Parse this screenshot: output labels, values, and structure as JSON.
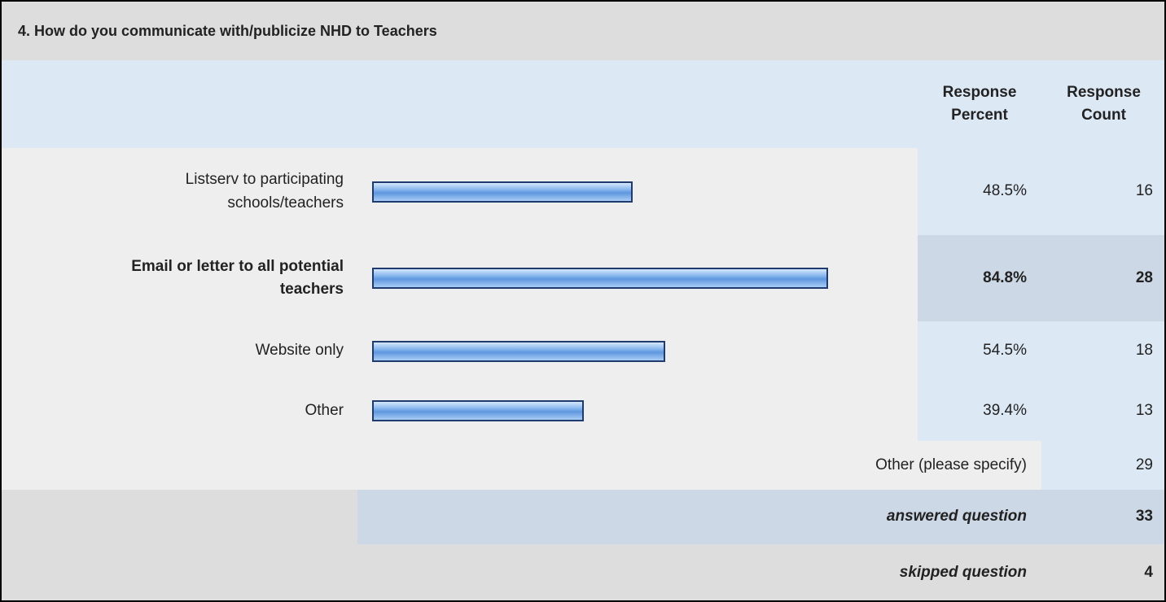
{
  "chart_data": {
    "type": "bar",
    "title": "4. How do you communicate with/publicize NHD to Teachers",
    "columns": [
      "Response Percent",
      "Response Count"
    ],
    "categories": [
      "Listserv to participating schools/teachers",
      "Email or letter to all potential teachers",
      "Website only",
      "Other"
    ],
    "values": [
      48.5,
      84.8,
      54.5,
      39.4
    ],
    "value_labels": [
      "48.5%",
      "84.8%",
      "54.5%",
      "39.4%"
    ],
    "counts": [
      16,
      28,
      18,
      13
    ],
    "xlim": [
      0,
      100
    ],
    "highlight": 1,
    "color": "#8ab8ee",
    "other_label": "Other (please specify)",
    "other_count": 29,
    "answered_label": "answered question",
    "answered": 33,
    "skipped_label": "skipped question",
    "skipped": 4
  }
}
